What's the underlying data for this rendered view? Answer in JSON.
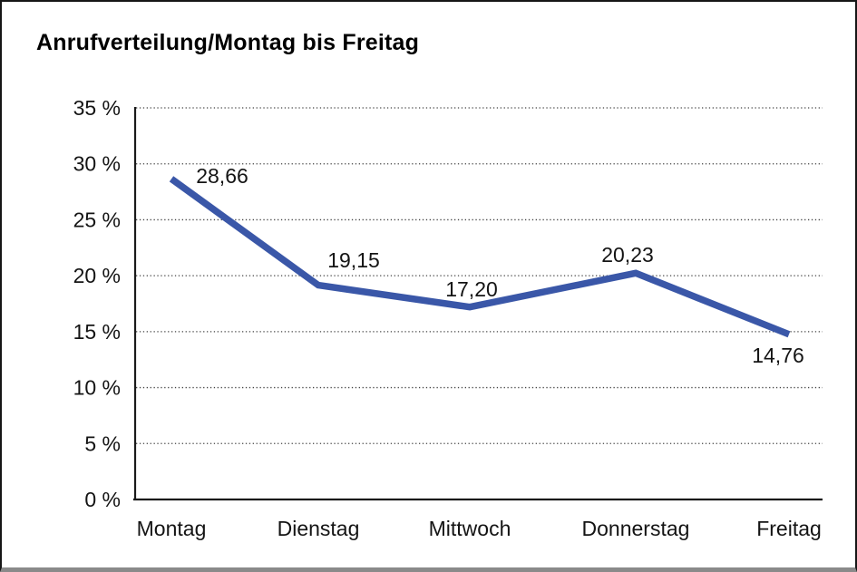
{
  "title": "Anrufverteilung/Montag bis Freitag",
  "chart_data": {
    "type": "line",
    "categories": [
      "Montag",
      "Dienstag",
      "Mittwoch",
      "Donnerstag",
      "Freitag"
    ],
    "values": [
      28.66,
      19.15,
      17.2,
      20.23,
      14.76
    ],
    "point_labels": [
      "28,66",
      "19,15",
      "17,20",
      "20,23",
      "14,76"
    ],
    "title": "Anrufverteilung/Montag bis Freitag",
    "xlabel": "",
    "ylabel": "",
    "ylim": [
      0,
      35
    ],
    "y_tick_step": 5,
    "y_tick_labels": [
      "0 %",
      "5 %",
      "10 %",
      "15 %",
      "20 %",
      "25 %",
      "30 %",
      "35 %"
    ],
    "grid": "dotted horizontal",
    "legend": "none",
    "line_color": "#3A57A8",
    "axis_color": "#1a1a1a"
  }
}
